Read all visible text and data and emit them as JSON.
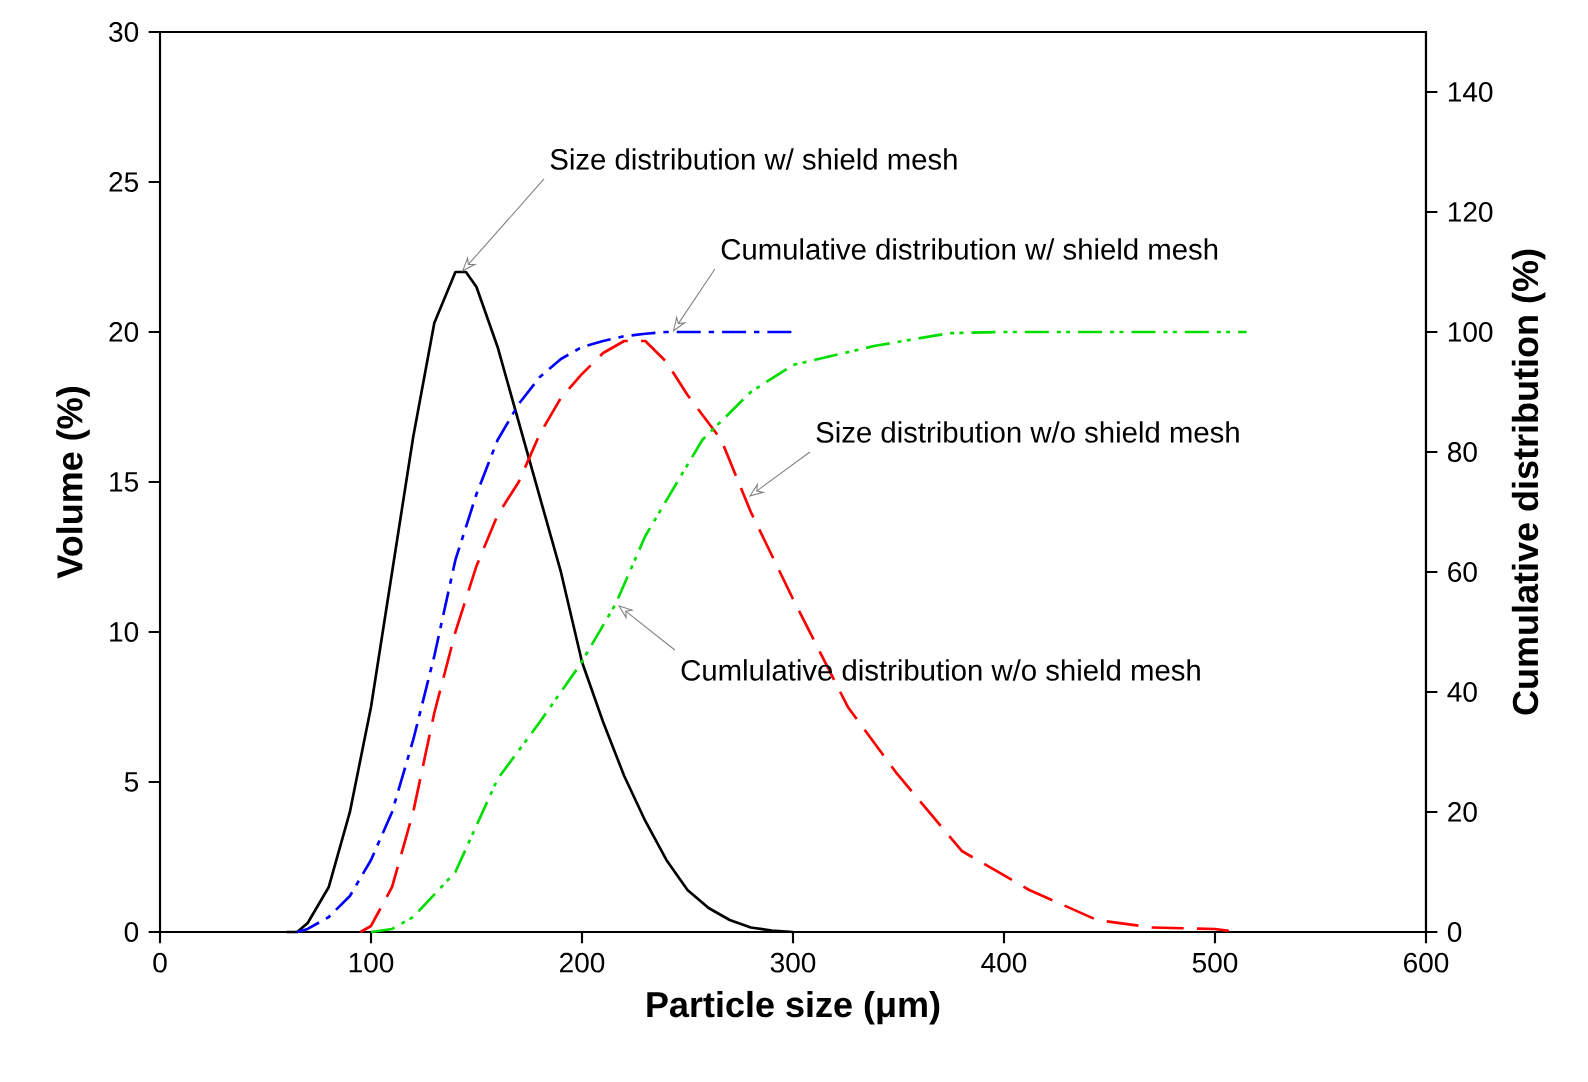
{
  "chart_data": {
    "type": "line",
    "xlabel": "Particle size (μm)",
    "ylabel": "Volume (%)",
    "y2label": "Cumulative distribution (%)",
    "xlim": [
      0,
      600
    ],
    "xticks": [
      0,
      100,
      200,
      300,
      400,
      500,
      600
    ],
    "ylim": [
      0,
      30
    ],
    "yticks": [
      0,
      5,
      10,
      15,
      20,
      25,
      30
    ],
    "y2lim": [
      0,
      150
    ],
    "y2ticks": [
      0,
      20,
      40,
      60,
      80,
      100,
      120,
      140
    ],
    "marker": "none",
    "grid": false,
    "legend": false,
    "series": [
      {
        "color": "#000000",
        "line_style": "solid",
        "x": [
          60,
          65,
          70,
          80,
          90,
          100,
          110,
          120,
          130,
          140,
          145,
          150,
          160,
          170,
          180,
          190,
          200,
          210,
          220,
          230,
          240,
          250,
          260,
          270,
          280,
          290,
          300
        ],
        "values": [
          0,
          0,
          0.3,
          1.5,
          4,
          7.5,
          12,
          16.5,
          20.3,
          22,
          22,
          21.5,
          19.5,
          17,
          14.5,
          12,
          9,
          7,
          5.2,
          3.7,
          2.4,
          1.4,
          0.8,
          0.4,
          0.15,
          0.05,
          0
        ]
      },
      {
        "color": "#0000ff",
        "line_style": "dashdot",
        "axis": "y2",
        "x": [
          65,
          70,
          80,
          90,
          100,
          110,
          120,
          130,
          140,
          150,
          160,
          170,
          180,
          190,
          200,
          210,
          220,
          230,
          240,
          300
        ],
        "values": [
          0,
          0.5,
          2.5,
          6,
          12,
          20,
          32,
          46,
          62,
          73,
          82,
          88,
          92.5,
          95.5,
          97.5,
          98.5,
          99.3,
          99.7,
          100,
          100
        ]
      },
      {
        "color": "#ff0000",
        "line_style": "dashed",
        "x": [
          95,
          100,
          110,
          120,
          130,
          140,
          150,
          160,
          170,
          180,
          190,
          200,
          210,
          220,
          230,
          240,
          250,
          266,
          280,
          300,
          326,
          349,
          380,
          412,
          444,
          470,
          500,
          510
        ],
        "values": [
          0,
          0.2,
          1.5,
          4,
          7.3,
          10,
          12.2,
          13.9,
          15,
          16.6,
          17.8,
          18.6,
          19.3,
          19.7,
          19.7,
          19,
          17.9,
          16.4,
          14,
          11.1,
          7.5,
          5.3,
          2.7,
          1.4,
          0.4,
          0.15,
          0.1,
          0
        ]
      },
      {
        "color": "#00dd00",
        "line_style": "dashdotdot",
        "axis": "y2",
        "x": [
          100,
          110,
          120,
          140,
          160,
          180,
          199,
          216,
          230,
          257,
          280,
          300,
          339,
          374,
          400,
          515
        ],
        "values": [
          0,
          0.5,
          2.5,
          10,
          25.5,
          35,
          44.5,
          54.7,
          66,
          82,
          90,
          94.5,
          97.7,
          99.8,
          100,
          100
        ]
      }
    ],
    "annotations": [
      {
        "text": "Size distribution w/ shield mesh",
        "x": 143,
        "y": 22
      },
      {
        "text": "Cumulative distribution w/ shield mesh",
        "x": 243,
        "y": 20
      },
      {
        "text": "Size distribution w/o shield mesh",
        "x": 279,
        "y": 14.5
      },
      {
        "text": "Cumlulative distribution w/o shield mesh",
        "x": 217,
        "y": 10.9
      }
    ]
  }
}
